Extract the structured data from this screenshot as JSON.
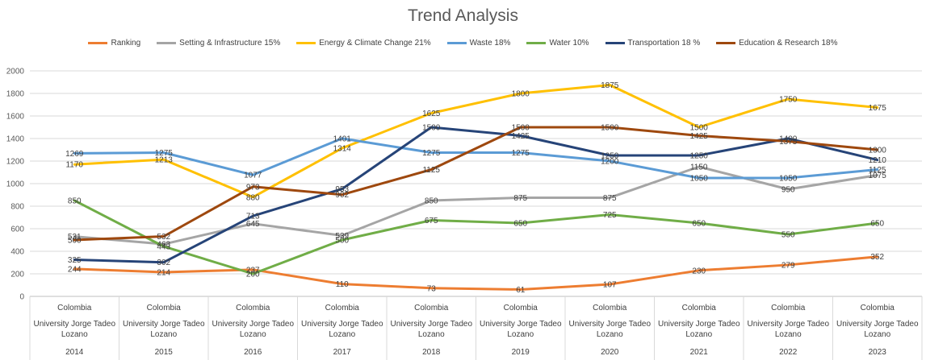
{
  "chart_data": {
    "type": "line",
    "title": "Trend Analysis",
    "ylim": [
      0,
      2000
    ],
    "yticks": [
      "0",
      "200",
      "400",
      "600",
      "800",
      "1000",
      "1200",
      "1400",
      "1600",
      "1800",
      "2000"
    ],
    "grid": true,
    "legend_position": "top",
    "categories": [
      {
        "country": "Colombia",
        "university": "University Jorge Tadeo Lozano",
        "year": "2014"
      },
      {
        "country": "Colombia",
        "university": "University Jorge Tadeo Lozano",
        "year": "2015"
      },
      {
        "country": "Colombia",
        "university": "University Jorge Tadeo Lozano",
        "year": "2016"
      },
      {
        "country": "Colombia",
        "university": "University Jorge Tadeo Lozano",
        "year": "2017"
      },
      {
        "country": "Colombia",
        "university": "University Jorge Tadeo Lozano",
        "year": "2018"
      },
      {
        "country": "Colombia",
        "university": "University Jorge Tadeo Lozano",
        "year": "2019"
      },
      {
        "country": "Colombia",
        "university": "University Jorge Tadeo Lozano",
        "year": "2020"
      },
      {
        "country": "Colombia",
        "university": "University Jorge Tadeo Lozano",
        "year": "2021"
      },
      {
        "country": "Colombia",
        "university": "University Jorge Tadeo Lozano",
        "year": "2022"
      },
      {
        "country": "Colombia",
        "university": "University Jorge Tadeo Lozano",
        "year": "2023"
      }
    ],
    "series": [
      {
        "name": "Ranking",
        "color": "#ED7D31",
        "values": [
          244,
          214,
          237,
          110,
          73,
          61,
          107,
          230,
          279,
          352
        ]
      },
      {
        "name": "Setting & Infrastructure 15%",
        "color": "#A5A5A5",
        "values": [
          531,
          463,
          645,
          539,
          850,
          875,
          875,
          1150,
          950,
          1075
        ]
      },
      {
        "name": "Energy & Climate Change  21%",
        "color": "#FFC000",
        "values": [
          1170,
          1213,
          880,
          1314,
          1625,
          1800,
          1875,
          1500,
          1750,
          1675
        ]
      },
      {
        "name": "Waste  18%",
        "color": "#5B9BD5",
        "values": [
          1269,
          1275,
          1077,
          1401,
          1275,
          1275,
          1200,
          1050,
          1050,
          1125
        ]
      },
      {
        "name": "Water 10%",
        "color": "#70AD47",
        "values": [
          850,
          443,
          200,
          500,
          675,
          650,
          725,
          650,
          550,
          650
        ]
      },
      {
        "name": "Transportation  18 %",
        "color": "#264478",
        "values": [
          325,
          302,
          713,
          953,
          1500,
          1425,
          1250,
          1250,
          1400,
          1210
        ]
      },
      {
        "name": "Education & Research 18%",
        "color": "#9E480E",
        "values": [
          500,
          532,
          973,
          902,
          1125,
          1500,
          1500,
          1425,
          1375,
          1300
        ]
      }
    ]
  }
}
